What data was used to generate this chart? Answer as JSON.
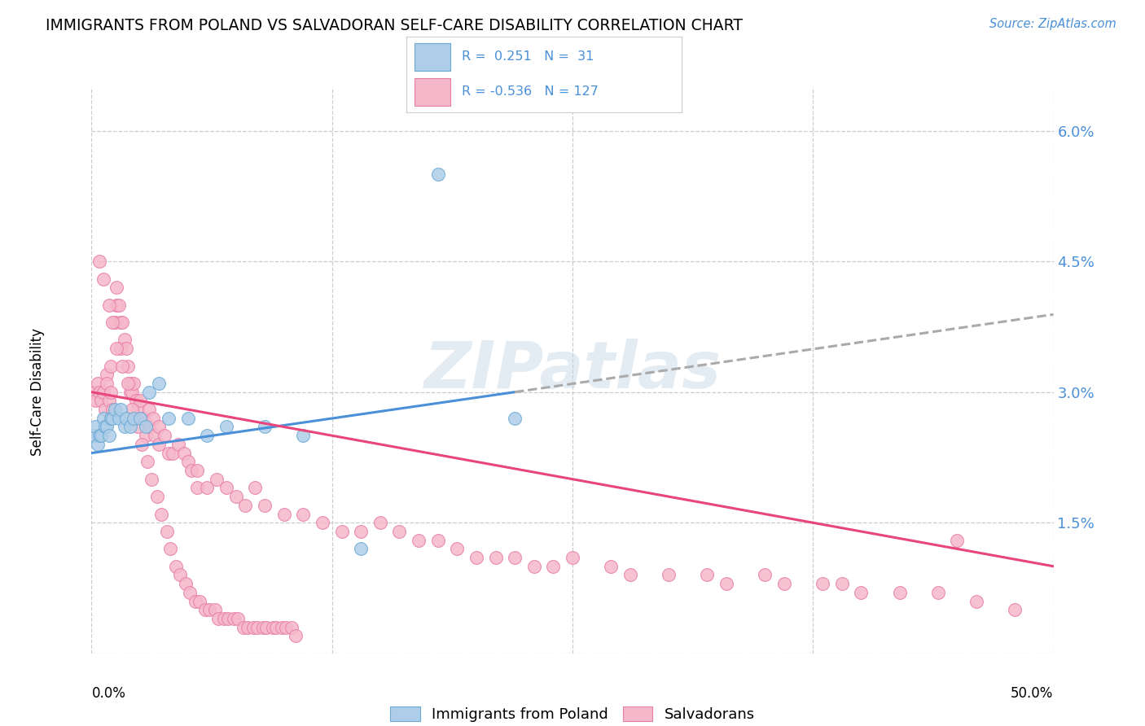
{
  "title": "IMMIGRANTS FROM POLAND VS SALVADORAN SELF-CARE DISABILITY CORRELATION CHART",
  "source": "Source: ZipAtlas.com",
  "ylabel": "Self-Care Disability",
  "xmin": 0.0,
  "xmax": 50.0,
  "ymin": 0.0,
  "ymax": 6.5,
  "ytick_vals": [
    0.0,
    1.5,
    3.0,
    4.5,
    6.0
  ],
  "ytick_labels": [
    "",
    "1.5%",
    "3.0%",
    "4.5%",
    "6.0%"
  ],
  "xtick_vals": [
    0.0,
    12.5,
    25.0,
    37.5,
    50.0
  ],
  "poland_color": "#aecde8",
  "poland_edge_color": "#6aaad4",
  "salvador_color": "#f5b8ca",
  "salvador_edge_color": "#e87daa",
  "trendline_poland_solid_color": "#4a90d9",
  "trendline_poland_dashed_color": "#aaaaaa",
  "trendline_salvador_color": "#e8457a",
  "legend_label_poland": "Immigrants from Poland",
  "legend_label_salvador": "Salvadorans",
  "poland_x": [
    0.1,
    0.2,
    0.3,
    0.4,
    0.5,
    0.6,
    0.7,
    0.8,
    0.9,
    1.0,
    1.1,
    1.2,
    1.4,
    1.5,
    1.7,
    1.8,
    2.0,
    2.2,
    2.5,
    2.8,
    3.0,
    3.5,
    4.0,
    5.0,
    6.0,
    7.0,
    9.0,
    11.0,
    14.0,
    18.0,
    22.0
  ],
  "poland_y": [
    2.5,
    2.6,
    2.4,
    2.5,
    2.5,
    2.7,
    2.6,
    2.6,
    2.5,
    2.7,
    2.7,
    2.8,
    2.7,
    2.8,
    2.6,
    2.7,
    2.6,
    2.7,
    2.7,
    2.6,
    3.0,
    3.1,
    2.7,
    2.7,
    2.5,
    2.6,
    2.6,
    2.5,
    1.2,
    5.5,
    2.7
  ],
  "salvador_x": [
    0.1,
    0.2,
    0.3,
    0.4,
    0.5,
    0.6,
    0.7,
    0.8,
    0.8,
    0.9,
    1.0,
    1.0,
    1.1,
    1.2,
    1.3,
    1.3,
    1.4,
    1.5,
    1.5,
    1.6,
    1.7,
    1.8,
    1.9,
    2.0,
    2.0,
    2.1,
    2.2,
    2.3,
    2.4,
    2.5,
    2.6,
    2.7,
    2.8,
    3.0,
    3.0,
    3.2,
    3.3,
    3.5,
    3.5,
    3.8,
    4.0,
    4.2,
    4.5,
    4.8,
    5.0,
    5.2,
    5.5,
    5.5,
    6.0,
    6.5,
    7.0,
    7.5,
    8.0,
    8.5,
    9.0,
    10.0,
    11.0,
    12.0,
    13.0,
    14.0,
    15.0,
    16.0,
    17.0,
    18.0,
    19.0,
    20.0,
    21.0,
    22.0,
    23.0,
    24.0,
    25.0,
    27.0,
    28.0,
    30.0,
    32.0,
    33.0,
    35.0,
    36.0,
    38.0,
    39.0,
    40.0,
    42.0,
    44.0,
    45.0,
    46.0,
    48.0,
    0.4,
    0.6,
    0.9,
    1.1,
    1.3,
    1.6,
    1.9,
    2.1,
    2.4,
    2.6,
    2.9,
    3.1,
    3.4,
    3.6,
    3.9,
    4.1,
    4.4,
    4.6,
    4.9,
    5.1,
    5.4,
    5.6,
    5.9,
    6.1,
    6.4,
    6.6,
    6.9,
    7.1,
    7.4,
    7.6,
    7.9,
    8.1,
    8.4,
    8.6,
    8.9,
    9.1,
    9.4,
    9.6,
    9.9,
    10.1,
    10.4,
    10.6
  ],
  "salvador_y": [
    3.0,
    2.9,
    3.1,
    3.0,
    2.9,
    3.0,
    2.8,
    3.2,
    3.1,
    2.9,
    3.0,
    3.3,
    2.8,
    3.8,
    4.2,
    4.0,
    4.0,
    3.8,
    3.5,
    3.8,
    3.6,
    3.5,
    3.3,
    3.1,
    3.0,
    3.0,
    3.1,
    2.9,
    2.8,
    2.9,
    2.7,
    2.7,
    2.5,
    2.6,
    2.8,
    2.7,
    2.5,
    2.6,
    2.4,
    2.5,
    2.3,
    2.3,
    2.4,
    2.3,
    2.2,
    2.1,
    2.1,
    1.9,
    1.9,
    2.0,
    1.9,
    1.8,
    1.7,
    1.9,
    1.7,
    1.6,
    1.6,
    1.5,
    1.4,
    1.4,
    1.5,
    1.4,
    1.3,
    1.3,
    1.2,
    1.1,
    1.1,
    1.1,
    1.0,
    1.0,
    1.1,
    1.0,
    0.9,
    0.9,
    0.9,
    0.8,
    0.9,
    0.8,
    0.8,
    0.8,
    0.7,
    0.7,
    0.7,
    1.3,
    0.6,
    0.5,
    4.5,
    4.3,
    4.0,
    3.8,
    3.5,
    3.3,
    3.1,
    2.8,
    2.6,
    2.4,
    2.2,
    2.0,
    1.8,
    1.6,
    1.4,
    1.2,
    1.0,
    0.9,
    0.8,
    0.7,
    0.6,
    0.6,
    0.5,
    0.5,
    0.5,
    0.4,
    0.4,
    0.4,
    0.4,
    0.4,
    0.3,
    0.3,
    0.3,
    0.3,
    0.3,
    0.3,
    0.3,
    0.3,
    0.3,
    0.3,
    0.3,
    0.2
  ]
}
